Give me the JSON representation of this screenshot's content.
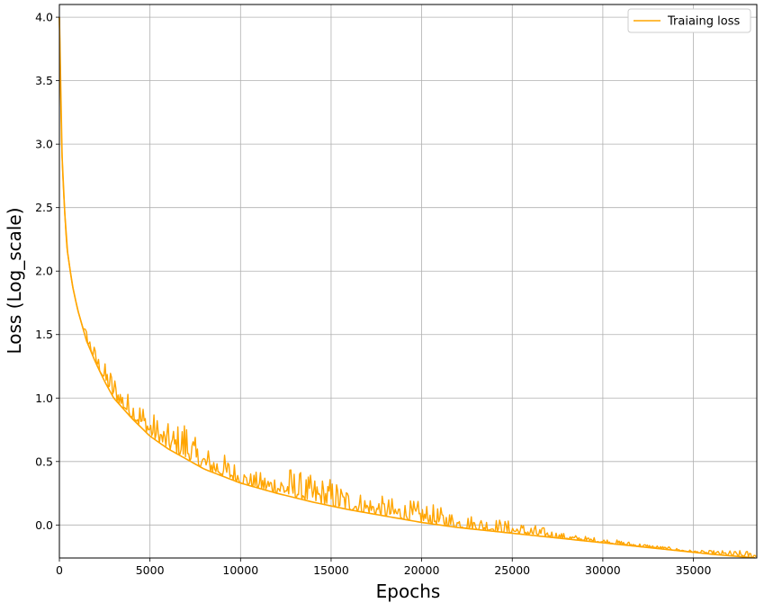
{
  "chart_data": {
    "type": "line",
    "title": "",
    "xlabel": "Epochs",
    "ylabel": "Loss (Log_scale)",
    "xlim": [
      0,
      38500
    ],
    "ylim": [
      -0.26,
      4.1
    ],
    "xticks": [
      0,
      5000,
      10000,
      15000,
      20000,
      25000,
      30000,
      35000
    ],
    "yticks": [
      0.0,
      0.5,
      1.0,
      1.5,
      2.0,
      2.5,
      3.0,
      3.5,
      4.0
    ],
    "ytick_labels": [
      "0.0",
      "0.5",
      "1.0",
      "1.5",
      "2.0",
      "2.5",
      "3.0",
      "3.5",
      "4.0"
    ],
    "grid": true,
    "legend": "top-right",
    "series": [
      {
        "name": "Traiaing loss",
        "color": "#ffa500",
        "baseline": [
          [
            0,
            4.0
          ],
          [
            100,
            3.1
          ],
          [
            200,
            2.7
          ],
          [
            400,
            2.2
          ],
          [
            700,
            1.9
          ],
          [
            1000,
            1.7
          ],
          [
            1500,
            1.45
          ],
          [
            2000,
            1.28
          ],
          [
            2500,
            1.13
          ],
          [
            3000,
            1.0
          ],
          [
            4000,
            0.84
          ],
          [
            5000,
            0.7
          ],
          [
            6000,
            0.6
          ],
          [
            7000,
            0.52
          ],
          [
            8000,
            0.44
          ],
          [
            10000,
            0.33
          ],
          [
            12000,
            0.25
          ],
          [
            14000,
            0.18
          ],
          [
            16000,
            0.12
          ],
          [
            18000,
            0.07
          ],
          [
            20000,
            0.02
          ],
          [
            22000,
            -0.02
          ],
          [
            24000,
            -0.05
          ],
          [
            26000,
            -0.08
          ],
          [
            28000,
            -0.11
          ],
          [
            30000,
            -0.14
          ],
          [
            32000,
            -0.17
          ],
          [
            34000,
            -0.2
          ],
          [
            36000,
            -0.23
          ],
          [
            38500,
            -0.26
          ]
        ],
        "spikes": [
          [
            500,
            1.9
          ],
          [
            800,
            1.8
          ],
          [
            1200,
            1.6
          ],
          [
            1500,
            1.55
          ],
          [
            2300,
            1.3
          ],
          [
            2800,
            1.25
          ],
          [
            3300,
            1.15
          ],
          [
            3700,
            1.05
          ],
          [
            4200,
            1.05
          ],
          [
            4800,
            0.95
          ],
          [
            5800,
            0.8
          ],
          [
            6500,
            0.8
          ],
          [
            7000,
            0.9
          ],
          [
            7600,
            0.65
          ],
          [
            8500,
            0.6
          ],
          [
            9300,
            0.55
          ],
          [
            10500,
            0.42
          ],
          [
            11600,
            0.42
          ],
          [
            12800,
            0.47
          ],
          [
            13600,
            0.4
          ],
          [
            15000,
            0.38
          ],
          [
            16500,
            0.27
          ],
          [
            17800,
            0.23
          ],
          [
            19000,
            0.2
          ],
          [
            20000,
            0.19
          ],
          [
            22000,
            0.1
          ],
          [
            24000,
            0.06
          ],
          [
            26300,
            0.0
          ],
          [
            28000,
            -0.07
          ],
          [
            31000,
            -0.12
          ],
          [
            33000,
            -0.16
          ],
          [
            35000,
            -0.2
          ]
        ]
      }
    ]
  }
}
